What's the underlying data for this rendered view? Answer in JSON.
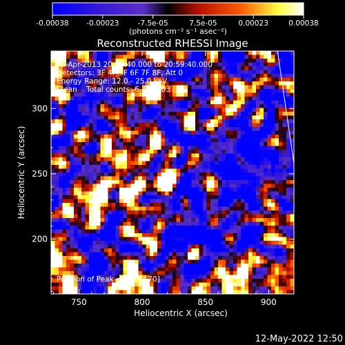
{
  "colorbar": {
    "ticks": [
      "-0.00038",
      "-0.00023",
      "-7.5e-05",
      "7.5e-05",
      "0.00023",
      "0.00038"
    ],
    "units": "(photons cm⁻² s⁻¹ asec⁻²)",
    "vmin": -0.00038,
    "vmax": 0.00038
  },
  "title": "Reconstructed RHESSI Image",
  "info": {
    "time_range": "8-Apr-2013 20:53:40.000 to 20:59:40.000",
    "detectors": "Detectors: 3F 4F 5F 6F 7F 8F, Att 0",
    "energy": "Energy Range: 12.0 - 25.0 keV",
    "clean": "Clean    Total counts: 6.76E+03",
    "peak": "Position of Peak = [737,170]"
  },
  "footer_timestamp": "12-May-2022 12:50",
  "chart_data": {
    "type": "heatmap",
    "title": "Reconstructed RHESSI Image",
    "xlabel": "Heliocentric X (arcsec)",
    "ylabel": "Heliocentric Y (arcsec)",
    "xlim": [
      728,
      920
    ],
    "ylim": [
      158,
      344
    ],
    "xticks": [
      750,
      800,
      850,
      900
    ],
    "yticks": [
      200,
      250,
      300
    ],
    "colormap": [
      "#0000ff",
      "#5a2fc8",
      "#000000",
      "#b71000",
      "#ff5a00",
      "#ffff40",
      "#ffffff"
    ],
    "peak_position": [
      737,
      170
    ],
    "limb_line": [
      [
        907,
        344
      ],
      [
        920,
        258
      ]
    ]
  }
}
